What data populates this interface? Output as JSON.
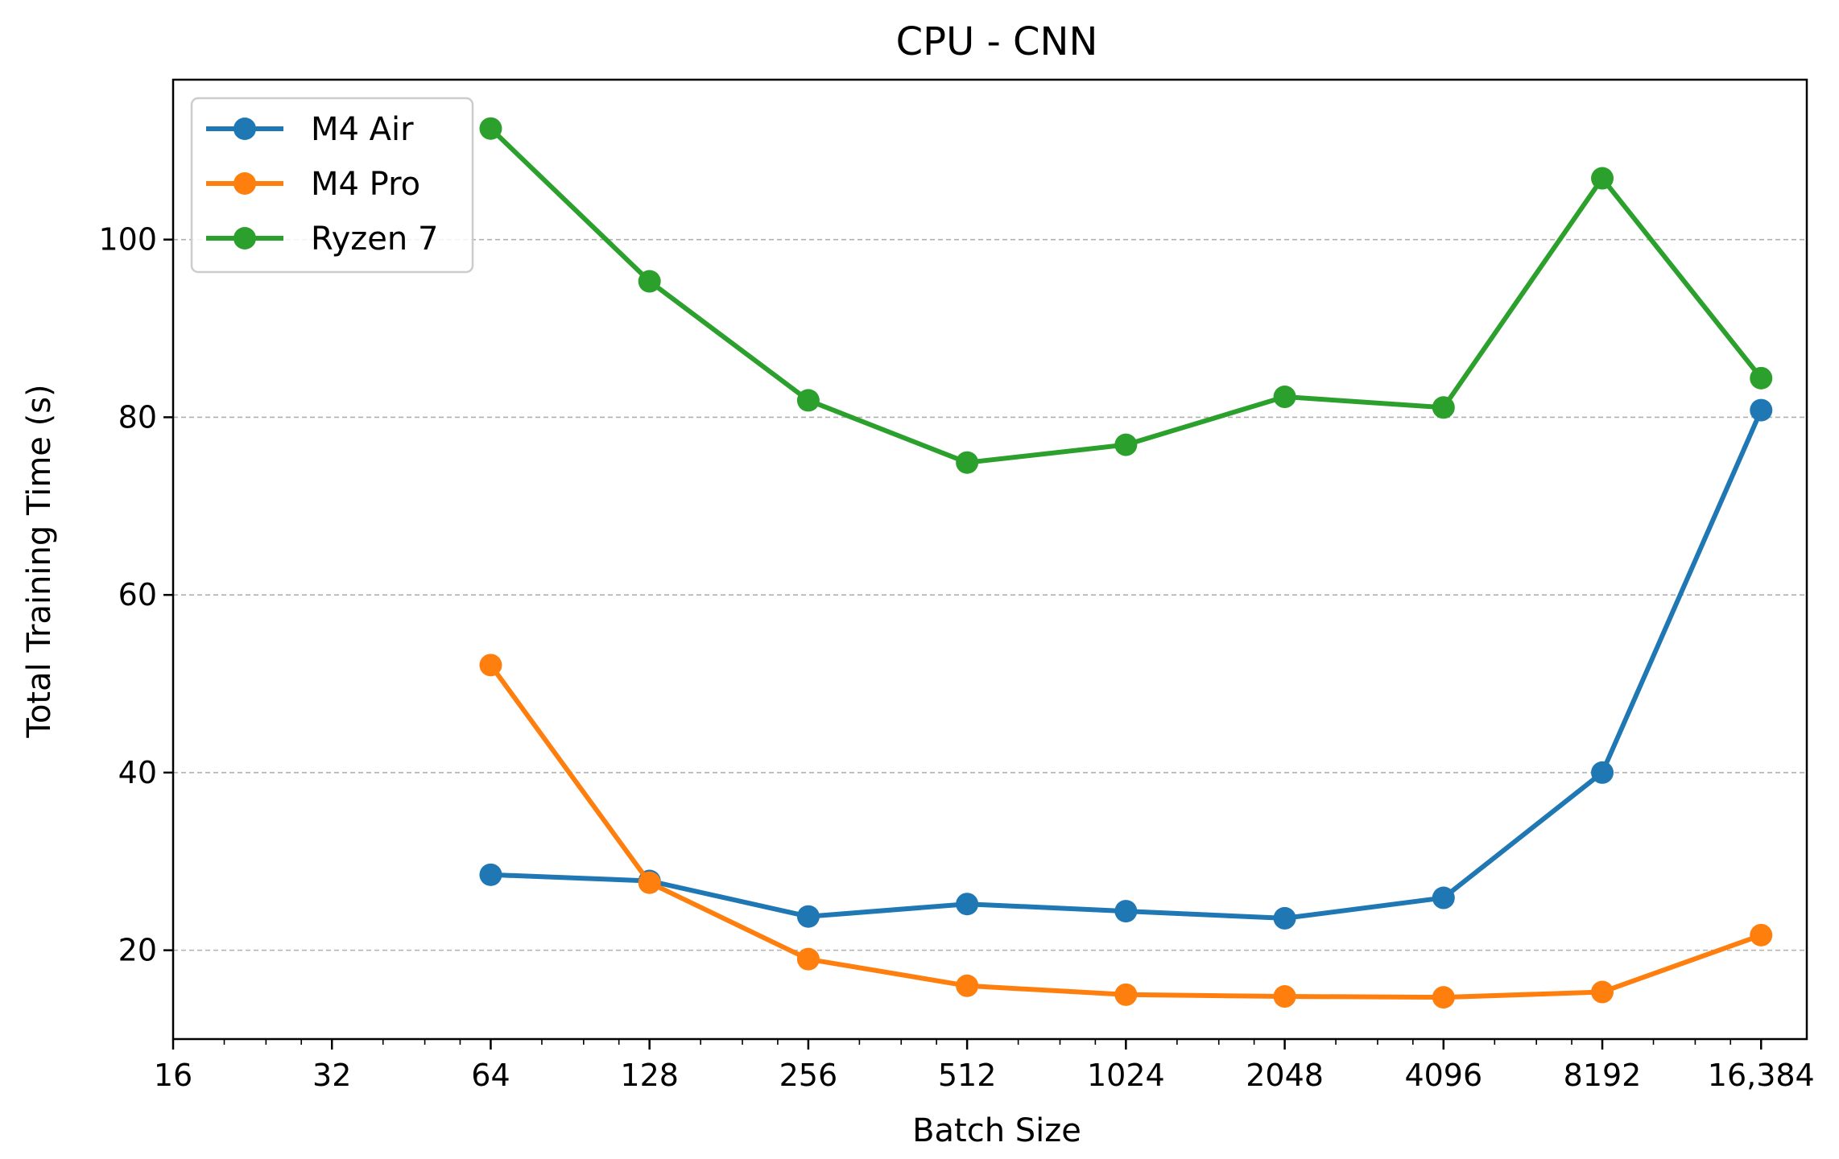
{
  "chart_data": {
    "type": "line",
    "title": "CPU - CNN",
    "xlabel": "Batch Size",
    "ylabel": "Total Training Time (s)",
    "x_scale": "log2",
    "xlim": [
      16,
      20000
    ],
    "ylim": [
      10,
      118
    ],
    "x_ticks": [
      {
        "value": 16,
        "label": "16"
      },
      {
        "value": 32,
        "label": "32"
      },
      {
        "value": 64,
        "label": "64"
      },
      {
        "value": 128,
        "label": "128"
      },
      {
        "value": 256,
        "label": "256"
      },
      {
        "value": 512,
        "label": "512"
      },
      {
        "value": 1024,
        "label": "1024"
      },
      {
        "value": 2048,
        "label": "2048"
      },
      {
        "value": 4096,
        "label": "4096"
      },
      {
        "value": 8192,
        "label": "8192"
      },
      {
        "value": 16384,
        "label": "16,384"
      }
    ],
    "y_ticks": [
      {
        "value": 20,
        "label": "20"
      },
      {
        "value": 40,
        "label": "40"
      },
      {
        "value": 60,
        "label": "60"
      },
      {
        "value": 80,
        "label": "80"
      },
      {
        "value": 100,
        "label": "100"
      }
    ],
    "grid": "y-dashed",
    "legend": "top-left",
    "x": [
      64,
      128,
      256,
      512,
      1024,
      2048,
      4096,
      8192,
      16384
    ],
    "series": [
      {
        "name": "M4 Air",
        "color": "#1f77b4",
        "values": [
          28.5,
          27.8,
          23.8,
          25.2,
          24.4,
          23.6,
          25.9,
          40.0,
          80.8
        ]
      },
      {
        "name": "M4 Pro",
        "color": "#ff7f0e",
        "values": [
          52.1,
          27.6,
          19.0,
          16.0,
          15.0,
          14.8,
          14.7,
          15.3,
          21.7
        ]
      },
      {
        "name": "Ryzen 7",
        "color": "#2ca02c",
        "values": [
          112.5,
          95.3,
          81.9,
          74.9,
          76.9,
          82.3,
          81.1,
          106.9,
          84.4
        ]
      }
    ]
  }
}
